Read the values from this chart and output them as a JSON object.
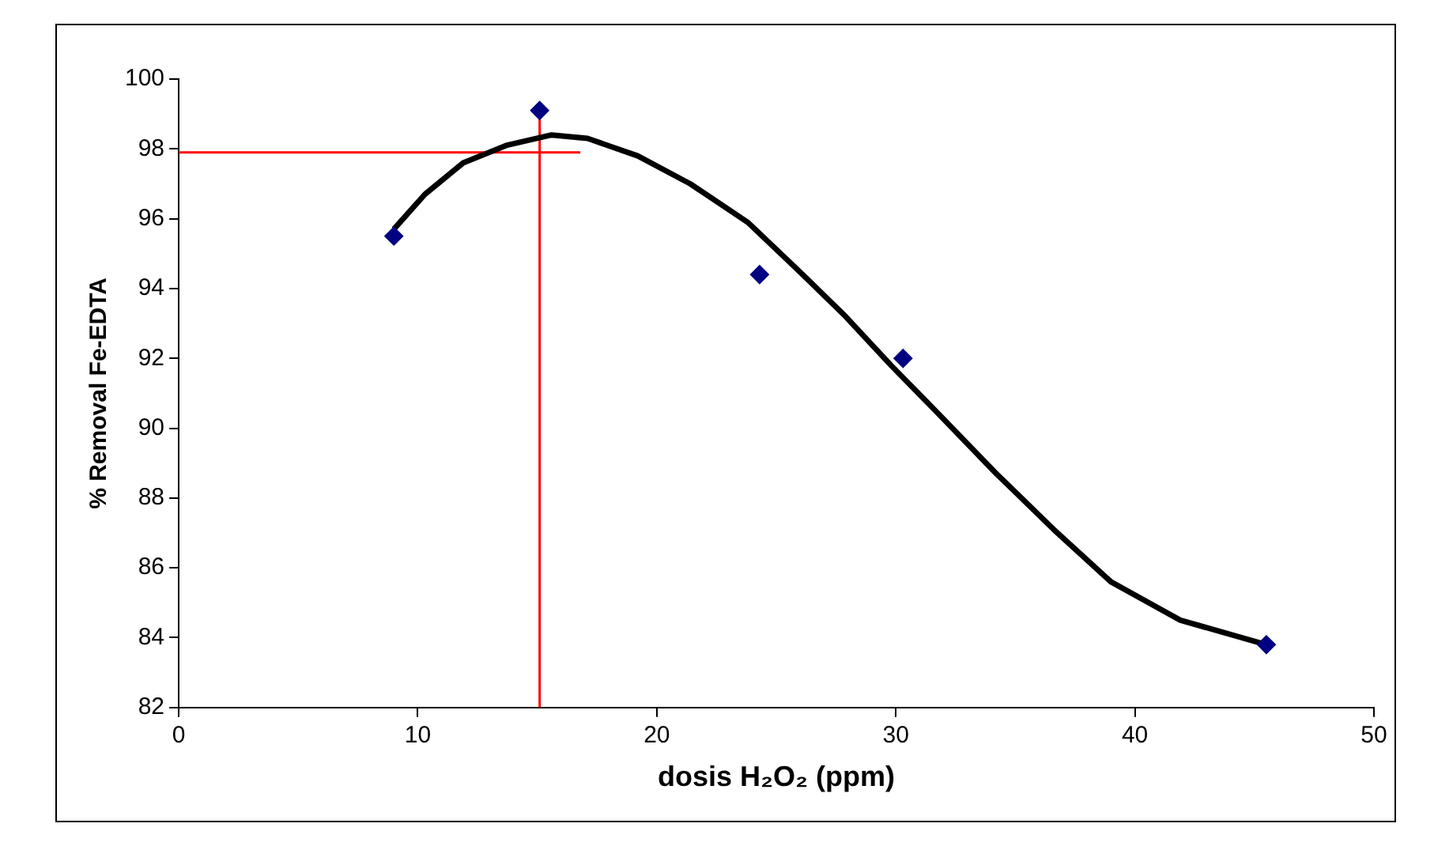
{
  "chart_data": {
    "type": "scatter",
    "xlabel": "dosis H₂O₂ (ppm)",
    "ylabel": "% Removal Fe-EDTA",
    "xlim": [
      0,
      50
    ],
    "xticks": [
      0,
      10,
      20,
      30,
      40,
      50
    ],
    "ylim": [
      82,
      100
    ],
    "yticks": [
      82,
      84,
      86,
      88,
      90,
      92,
      94,
      96,
      98,
      100
    ],
    "grid": false,
    "legend": false,
    "marker": "diamond",
    "series": [
      {
        "color": "#000080",
        "x": [
          9.0,
          15.1,
          24.3,
          30.3,
          45.5
        ],
        "values": [
          95.5,
          99.1,
          94.4,
          92.0,
          83.8
        ]
      },
      {
        "type": "line",
        "color": "#000000",
        "marker": "none",
        "x": [
          9.0,
          10.3,
          11.9,
          13.7,
          15.6,
          17.1,
          19.2,
          21.4,
          23.8,
          25.8,
          27.9,
          29.8,
          31.8,
          34.2,
          36.6,
          39.0,
          41.9,
          45.5
        ],
        "values": [
          95.7,
          96.7,
          97.6,
          98.1,
          98.4,
          98.3,
          97.8,
          97.0,
          95.9,
          94.6,
          93.2,
          91.8,
          90.4,
          88.7,
          87.1,
          85.6,
          84.5,
          83.8
        ]
      },
      {
        "type": "line",
        "color": "#ff0000",
        "marker": "none",
        "x": [
          15.1,
          15.1
        ],
        "values": [
          82,
          98.9
        ]
      },
      {
        "type": "line",
        "color": "#ff0000",
        "marker": "none",
        "x": [
          0,
          16.8
        ],
        "values": [
          97.9,
          97.9
        ]
      }
    ]
  }
}
